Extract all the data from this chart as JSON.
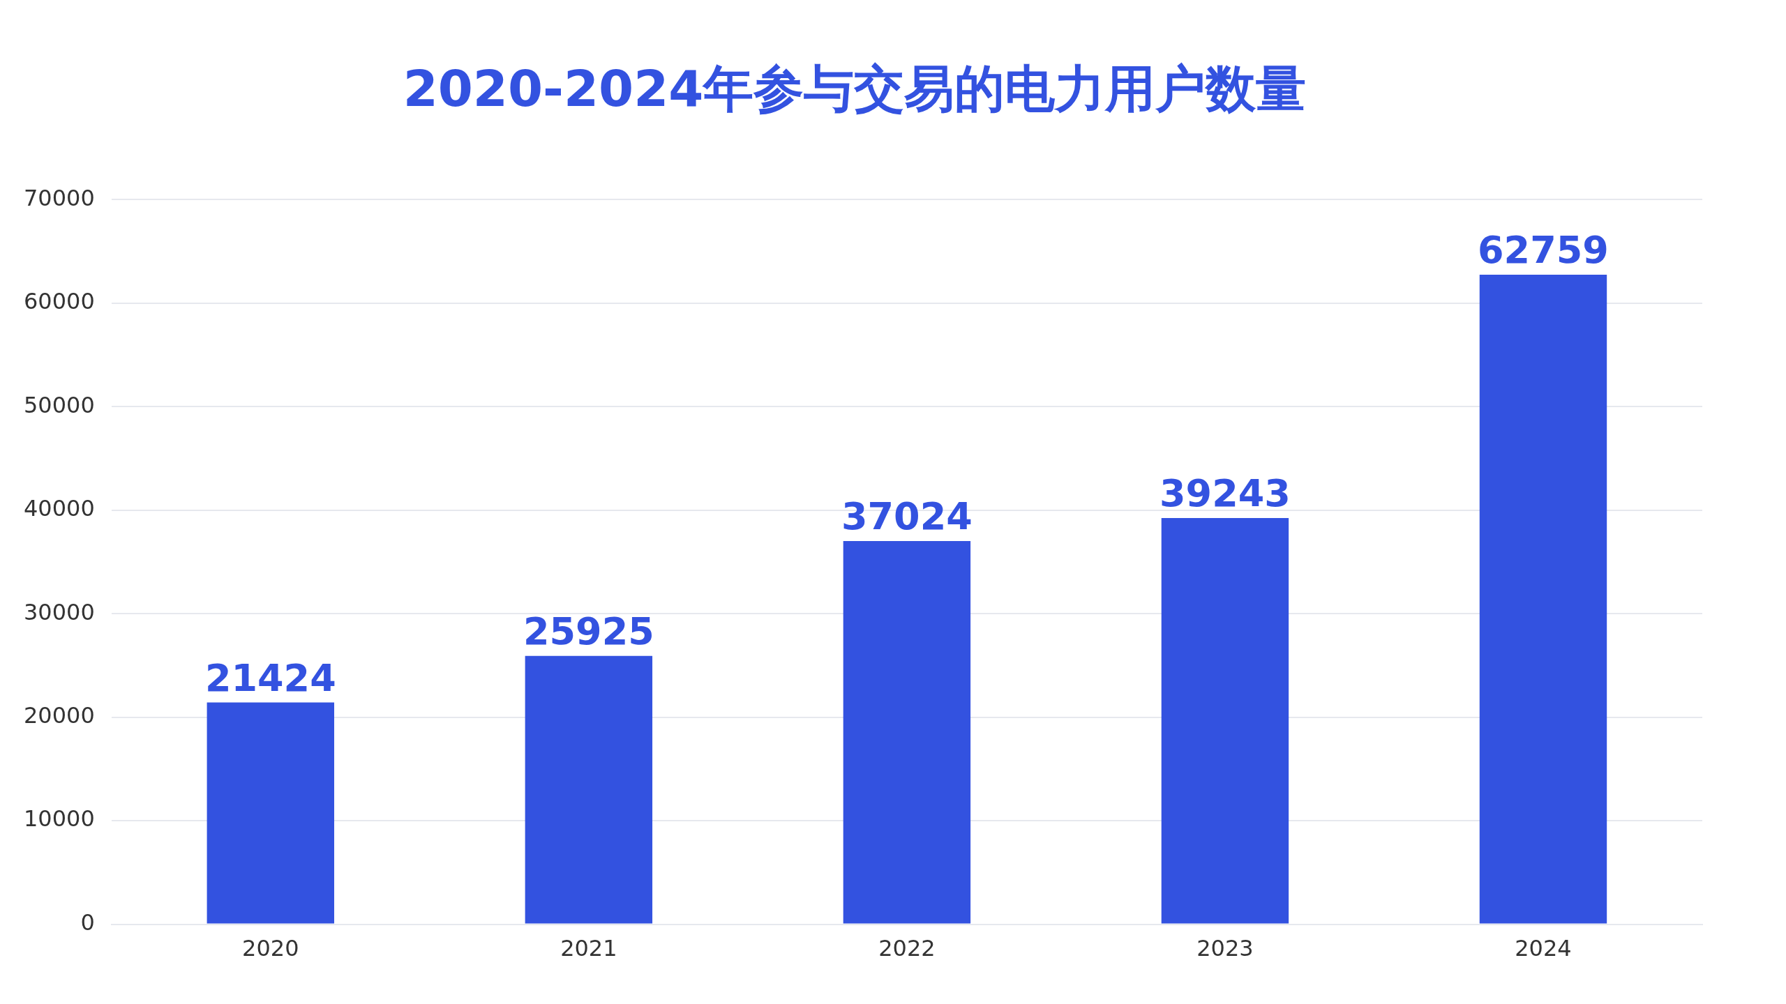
{
  "chart_data": {
    "type": "bar",
    "title": "2020-2024年参与交易的电力用户数量",
    "categories": [
      "2020",
      "2021",
      "2022",
      "2023",
      "2024"
    ],
    "values": [
      21424,
      25925,
      37024,
      39243,
      62759
    ],
    "color": "#3352e0",
    "ylim": [
      0,
      70000
    ],
    "yticks": [
      0,
      10000,
      20000,
      30000,
      40000,
      50000,
      60000,
      70000
    ],
    "grid": "y",
    "legend": false,
    "data_labels": true
  }
}
